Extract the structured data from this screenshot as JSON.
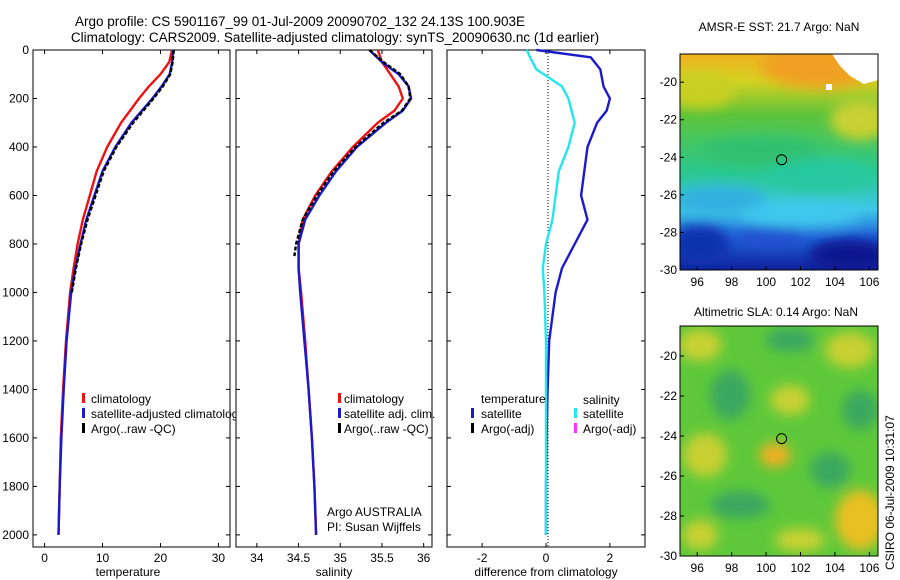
{
  "title_line1": "Argo profile: CS 5901167_99 01-Jul-2009 20090702_132 24.13S 100.903E",
  "title_line2": "Climatology: CARS2009. Satellite-adjusted climatology: synTS_20090630.nc (1d earlier)",
  "footer_stamp": "CSIRO 06-Jul-2009 10:31:07",
  "colors": {
    "climatology": "#ee1111",
    "satellite": "#1a1acc",
    "argo": "#000000",
    "sal_sat": "#22e6ee",
    "sal_argo": "#ff33ff"
  },
  "chart_data": [
    {
      "id": "temperature",
      "type": "line",
      "xlabel": "temperature",
      "ylabel": "",
      "xlim": [
        -2,
        32
      ],
      "ylim": [
        2050,
        0
      ],
      "xticks": [
        0,
        10,
        20,
        30
      ],
      "yticks": [
        0,
        200,
        400,
        600,
        800,
        1000,
        1200,
        1400,
        1600,
        1800,
        2000
      ],
      "legend": {
        "position": "bottom-right",
        "items": [
          "climatology",
          "satellite-adjusted climatology",
          "Argo(..raw -QC)"
        ]
      },
      "series": [
        {
          "name": "climatology",
          "color": "#ee1111",
          "dash": "",
          "depth": [
            0,
            50,
            100,
            150,
            200,
            300,
            400,
            500,
            600,
            700,
            800,
            900,
            1000,
            1200,
            1400,
            1600,
            1800,
            2000
          ],
          "values": [
            22.0,
            21.5,
            20.0,
            18.0,
            16.3,
            13.2,
            10.8,
            9.0,
            7.8,
            6.6,
            5.7,
            5.0,
            4.4,
            3.7,
            3.2,
            2.8,
            2.6,
            2.4
          ]
        },
        {
          "name": "satellite-adjusted climatology",
          "color": "#1a1acc",
          "dash": "",
          "depth": [
            0,
            50,
            100,
            150,
            200,
            300,
            400,
            500,
            600,
            700,
            800,
            900,
            1000,
            1200,
            1400,
            1600,
            1800,
            2000
          ],
          "values": [
            22.2,
            22.0,
            21.6,
            20.2,
            18.6,
            15.0,
            12.2,
            10.0,
            8.6,
            7.2,
            6.2,
            5.3,
            4.6,
            3.8,
            3.3,
            2.9,
            2.6,
            2.4
          ]
        },
        {
          "name": "Argo(..raw -QC)",
          "color": "#000000",
          "dash": "4 2",
          "depth": [
            0,
            50,
            100,
            150,
            200,
            300,
            400,
            500,
            600,
            700,
            800,
            900,
            1000
          ],
          "values": [
            22.3,
            22.1,
            21.7,
            20.4,
            18.8,
            15.3,
            12.4,
            10.2,
            8.8,
            7.4,
            6.3,
            5.4,
            4.7
          ]
        }
      ],
      "annotations": []
    },
    {
      "id": "salinity",
      "type": "line",
      "xlabel": "salinity",
      "ylabel": "",
      "xlim": [
        33.75,
        36.1
      ],
      "ylim": [
        2050,
        0
      ],
      "xticks": [
        34,
        34.5,
        35,
        35.5,
        36
      ],
      "yticks": [],
      "legend": {
        "position": "bottom-right",
        "items": [
          "climatology",
          "satellite adj. clim.",
          "Argo(..raw -QC)"
        ]
      },
      "series": [
        {
          "name": "climatology",
          "color": "#ee1111",
          "dash": "",
          "depth": [
            0,
            50,
            100,
            150,
            200,
            250,
            300,
            400,
            500,
            600,
            700,
            800,
            900,
            1000,
            1200,
            1400,
            1600,
            1800,
            2000
          ],
          "values": [
            35.45,
            35.5,
            35.6,
            35.7,
            35.75,
            35.65,
            35.45,
            35.15,
            34.9,
            34.7,
            34.55,
            34.5,
            34.5,
            34.53,
            34.58,
            34.62,
            34.66,
            34.69,
            34.71
          ]
        },
        {
          "name": "satellite adj. clim.",
          "color": "#1a1acc",
          "dash": "",
          "depth": [
            0,
            50,
            100,
            150,
            200,
            250,
            300,
            400,
            500,
            600,
            700,
            800,
            900,
            1000,
            1200,
            1400,
            1600,
            1800,
            2000
          ],
          "values": [
            35.35,
            35.5,
            35.7,
            35.82,
            35.85,
            35.75,
            35.55,
            35.2,
            34.95,
            34.75,
            34.58,
            34.5,
            34.5,
            34.52,
            34.57,
            34.62,
            34.66,
            34.69,
            34.71
          ]
        },
        {
          "name": "Argo(..raw -QC)",
          "color": "#000000",
          "dash": "4 2",
          "depth": [
            0,
            50,
            100,
            150,
            200,
            250,
            300,
            400,
            500,
            600,
            700,
            800,
            850
          ],
          "values": [
            35.35,
            35.52,
            35.72,
            35.82,
            35.84,
            35.74,
            35.52,
            35.18,
            34.92,
            34.72,
            34.55,
            34.47,
            34.45
          ]
        }
      ],
      "annotations": [
        "Argo AUSTRALIA",
        "PI: Susan Wijffels"
      ]
    },
    {
      "id": "difference",
      "type": "line",
      "xlabel": "difference from climatology",
      "ylabel": "",
      "xlim": [
        -3.1,
        3.1
      ],
      "ylim": [
        2050,
        0
      ],
      "xticks": [
        -2,
        0,
        2
      ],
      "yticks": [],
      "legend": {
        "position": "bottom",
        "items": [
          "temperature",
          "satellite",
          "Argo(-adj)",
          "salinity",
          "satellite",
          "Argo(-adj)"
        ]
      },
      "series": [
        {
          "name": "temperature satellite",
          "color": "#1a1acc",
          "dash": "",
          "depth": [
            0,
            30,
            80,
            150,
            200,
            250,
            300,
            400,
            500,
            600,
            700,
            800,
            900,
            1000,
            1200,
            1400,
            1600,
            1800,
            2000
          ],
          "values": [
            -0.3,
            1.4,
            1.7,
            1.8,
            2.0,
            1.9,
            1.6,
            1.3,
            1.2,
            1.1,
            1.3,
            0.9,
            0.5,
            0.3,
            0.1,
            0.05,
            0.02,
            0.0,
            0.0
          ]
        },
        {
          "name": "salinity satellite",
          "color": "#22e6ee",
          "dash": "",
          "depth": [
            0,
            30,
            80,
            150,
            200,
            250,
            300,
            400,
            500,
            600,
            700,
            800,
            900,
            1000,
            1200,
            1400,
            1600,
            1800,
            2000
          ],
          "values": [
            -0.6,
            -0.5,
            -0.3,
            0.5,
            0.7,
            0.8,
            0.9,
            0.7,
            0.4,
            0.3,
            0.2,
            0.0,
            -0.1,
            -0.05,
            0.0,
            0.0,
            0.0,
            0.0,
            0.0
          ]
        }
      ],
      "annotations": []
    },
    {
      "id": "sst_map",
      "type": "heatmap",
      "title": "AMSR-E SST: 21.7 Argo: NaN",
      "xlim": [
        95,
        106.5
      ],
      "ylim": [
        -30,
        -18.5
      ],
      "xticks": [
        96,
        98,
        100,
        102,
        104,
        106
      ],
      "yticks": [
        -20,
        -22,
        -24,
        -26,
        -28,
        -30
      ],
      "marker": {
        "lon": 100.903,
        "lat": -24.13
      }
    },
    {
      "id": "sla_map",
      "type": "heatmap",
      "title": "Altimetric SLA: 0.14 Argo: NaN",
      "xlim": [
        95,
        106.5
      ],
      "ylim": [
        -30,
        -18.5
      ],
      "xticks": [
        96,
        98,
        100,
        102,
        104,
        106
      ],
      "yticks": [
        -20,
        -22,
        -24,
        -26,
        -28,
        -30
      ],
      "marker": {
        "lon": 100.903,
        "lat": -24.13
      }
    }
  ]
}
